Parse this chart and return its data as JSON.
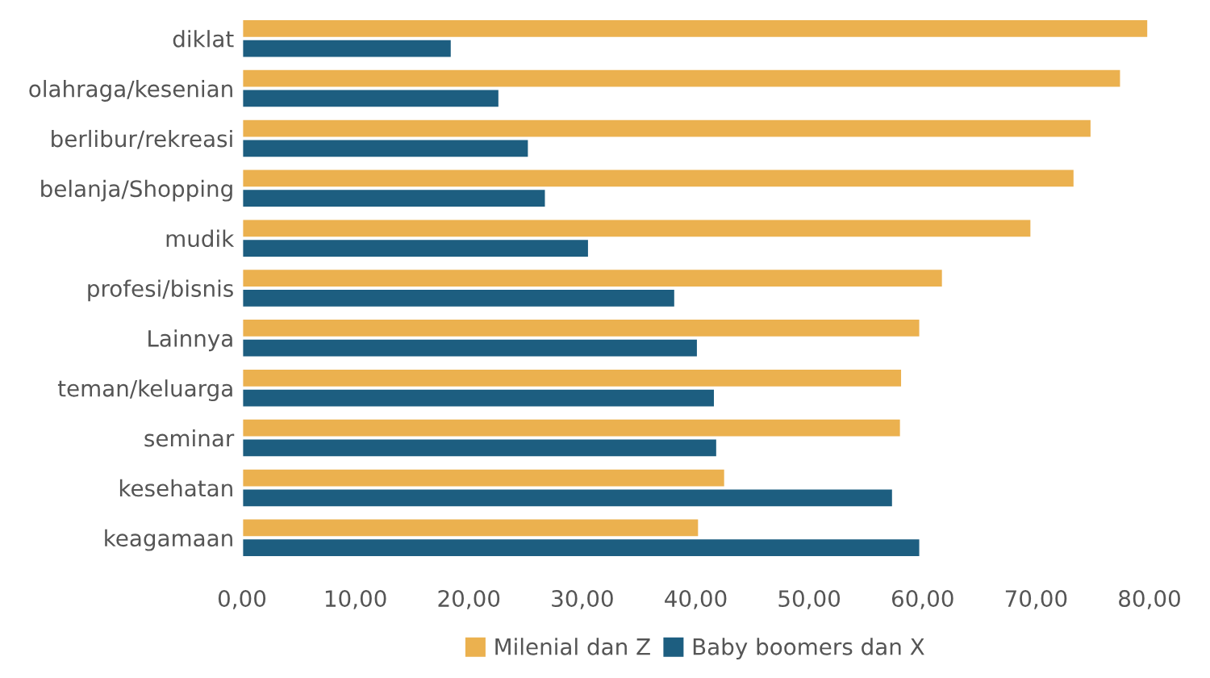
{
  "chart_data": {
    "type": "bar",
    "orientation": "horizontal",
    "categories": [
      "diklat",
      "olahraga/kesenian",
      "berlibur/rekreasi",
      "belanja/Shopping",
      "mudik",
      "profesi/bisnis",
      "Lainnya",
      "teman/keluarga",
      "seminar",
      "kesehatan",
      "keagamaan"
    ],
    "series": [
      {
        "name": "Milenial dan Z",
        "color": "#ebb14f",
        "values": [
          79.9,
          77.5,
          74.9,
          73.4,
          69.6,
          61.8,
          59.8,
          58.2,
          58.1,
          42.6,
          40.3
        ]
      },
      {
        "name": "Baby boomers dan X",
        "color": "#1d5e80",
        "values": [
          18.5,
          22.7,
          25.3,
          26.8,
          30.6,
          38.2,
          40.2,
          41.7,
          41.9,
          57.4,
          59.8
        ]
      }
    ],
    "xlim": [
      0,
      80
    ],
    "xticks": [
      {
        "value": 0,
        "label": "0,00"
      },
      {
        "value": 10,
        "label": "10,00"
      },
      {
        "value": 20,
        "label": "20,00"
      },
      {
        "value": 30,
        "label": "30,00"
      },
      {
        "value": 40,
        "label": "40,00"
      },
      {
        "value": 50,
        "label": "50,00"
      },
      {
        "value": 60,
        "label": "60,00"
      },
      {
        "value": 70,
        "label": "70,00"
      },
      {
        "value": 80,
        "label": "80,00"
      }
    ],
    "grid": false,
    "legend": "bottom"
  }
}
